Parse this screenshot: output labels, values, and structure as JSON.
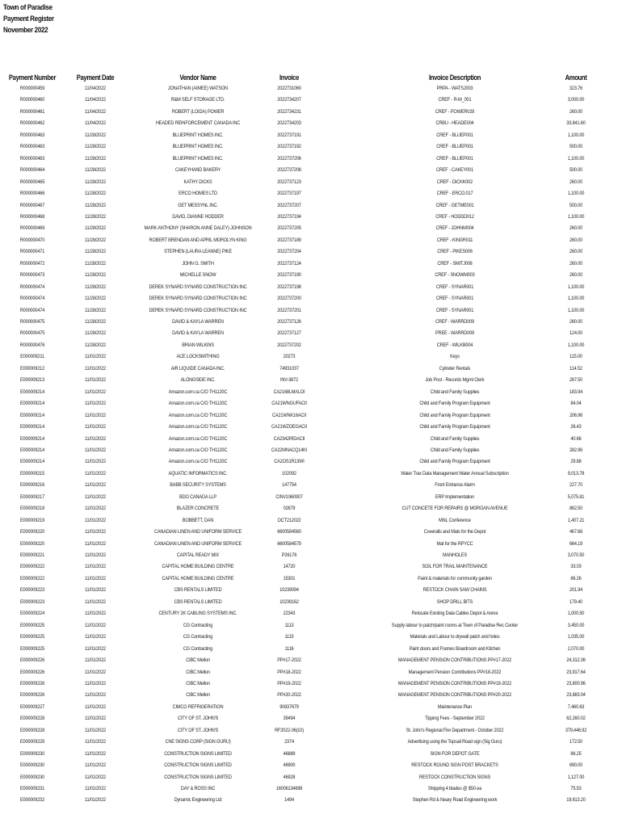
{
  "header": {
    "org": "Town of Paradise",
    "report": "Payment Register",
    "period": "November 2022"
  },
  "columns": [
    "Payment Number",
    "Payment Date",
    "Vendor Name",
    "Invoice",
    "Invoice Description",
    "Amount"
  ],
  "rows": [
    [
      "R000000459",
      "11/04/2022",
      "JONATHAN (AIMEE) WATSON",
      "2022731060",
      "PRPA - WATSJ003",
      "323.76"
    ],
    [
      "R000000460",
      "11/04/2022",
      "R&M SELF STORAGE LTD.",
      "2022734207",
      "CREF - R-M_001",
      "3,000.00"
    ],
    [
      "R000000461",
      "11/04/2022",
      "ROBERT (LOIDA) POWER",
      "2022734231",
      "CREF - POWER029",
      "260.00"
    ],
    [
      "R000000462",
      "11/04/2022",
      "HEADED REINFORCEMENT CANADA INC",
      "2022734203",
      "CRBU - HEADE004",
      "33,841.60"
    ],
    [
      "R000000463",
      "11/28/2022",
      "BLUEPRINT HOMES INC.",
      "2022737191",
      "CREF - BLUEP001",
      "1,100.00"
    ],
    [
      "R000000463",
      "11/28/2022",
      "BLUEPRINT HOMES INC.",
      "2022737192",
      "CREF - BLUEP001",
      "500.00"
    ],
    [
      "R000000463",
      "11/28/2022",
      "BLUEPRINT HOMES INC.",
      "2022737206",
      "CREF - BLUEP001",
      "1,100.00"
    ],
    [
      "R000000464",
      "11/28/2022",
      "CAKEYHAND BAKERY",
      "2022737208",
      "CREF - CAKEY001",
      "500.00"
    ],
    [
      "R000000465",
      "11/28/2022",
      "KATHY DICKS",
      "2022737123",
      "CREF - DICKK002",
      "260.00"
    ],
    [
      "R000000466",
      "11/28/2022",
      "ERCO HOMES LTD",
      "2022737197",
      "CREF - ERCO.017",
      "1,100.00"
    ],
    [
      "R000000467",
      "11/28/2022",
      "GET MESSYNL INC.",
      "2022737207",
      "CREF - GETME001",
      "500.00"
    ],
    [
      "R000000468",
      "11/28/2022",
      "DAVID, DIANNE HODDER",
      "2022737194",
      "CREF - HODDD012",
      "1,100.00"
    ],
    [
      "R000000469",
      "11/28/2022",
      "MARK ANTHONY (SHARON ANNE DALEY) JOHNSON",
      "2022737205",
      "CREF - JOHNM004",
      "260.00"
    ],
    [
      "R000000470",
      "11/28/2022",
      "ROBERT BRENDAN AND APRIL MOROLYN KING",
      "2022737189",
      "CREF - KINGR011",
      "260.00"
    ],
    [
      "R000000471",
      "11/28/2022",
      "STEPHEN (LAURA LEANNE) PIKE",
      "2022737204",
      "CREF - PIKES006",
      "260.00"
    ],
    [
      "R000000472",
      "11/28/2022",
      "JOHN G. SMITH",
      "2022737124",
      "CREF - SMITJ008",
      "260.00"
    ],
    [
      "R000000473",
      "11/28/2022",
      "MICHELLE SNOW",
      "2022737190",
      "CREF - SNOWM003",
      "260.00"
    ],
    [
      "R000000474",
      "11/28/2022",
      "DEREK SYNARD SYNARD CONSTRUCTION INC",
      "2022737198",
      "CREF - SYNAR001",
      "1,100.00"
    ],
    [
      "R000000474",
      "11/28/2022",
      "DEREK SYNARD SYNARD CONSTRUCTION INC",
      "2022737200",
      "CREF - SYNAR001",
      "1,100.00"
    ],
    [
      "R000000474",
      "11/28/2022",
      "DEREK SYNARD SYNARD CONSTRUCTION INC",
      "2022737201",
      "CREF - SYNAR001",
      "1,100.00"
    ],
    [
      "R000000475",
      "11/28/2022",
      "DAVID & KAYLA WARREN",
      "2022737126",
      "CREF - WARRD009",
      "260.00"
    ],
    [
      "R000000475",
      "11/28/2022",
      "DAVID & KAYLA WARREN",
      "2022737127",
      "PREE - WARRD009",
      "124.00"
    ],
    [
      "R000000476",
      "11/28/2022",
      "BRIAN WILKINS",
      "2022737202",
      "CREF - WILKB004",
      "1,100.00"
    ],
    [
      "E000009211",
      "11/01/2022",
      "ACE LOCKSMITHING",
      "20273",
      "Keys",
      "115.00"
    ],
    [
      "E000009212",
      "11/01/2022",
      "AIR LIQUIDE CANADA INC.",
      "74931037",
      "Cylinder Rentals",
      "114.52"
    ],
    [
      "E000009213",
      "11/01/2022",
      "ALONGSIDE INC.",
      "INV-3872",
      "Job Post - Records Mgmt Clerk",
      "287.50"
    ],
    [
      "E000009214",
      "11/01/2022",
      "Amazon.com.ca C/O TH1120C",
      "CA2168LMALOI",
      "Child and Family Supplies",
      "183.94"
    ],
    [
      "E000009214",
      "11/01/2022",
      "Amazon.com.ca C/O TH1120C",
      "CA21WNGUFACII",
      "Child and Family Program Equipment",
      "84.04"
    ],
    [
      "E000009214",
      "11/01/2022",
      "Amazon.com.ca C/O TH1120C",
      "CA21WNK16ACII",
      "Child and Family Program Equipment",
      "206.96"
    ],
    [
      "E000009214",
      "11/01/2022",
      "Amazon.com.ca C/O TH1120C",
      "CA21WZOEGACII",
      "Child and Family Program Equipment",
      "26.43"
    ],
    [
      "E000009214",
      "11/01/2022",
      "Amazon.com.ca C/O TH1120C",
      "CA2342IRDACII",
      "Child and Family Supplies",
      "40.66"
    ],
    [
      "E000009214",
      "11/01/2022",
      "Amazon.com.ca C/O TH1120C",
      "CA22MNACQ14KI",
      "Child and Family Supplies",
      "282.96"
    ],
    [
      "E000009214",
      "11/01/2022",
      "Amazon.com.ca C/O TH1120C",
      "CA2OS1R13WI",
      "Child and Family Program Equipment",
      "29.88"
    ],
    [
      "E000009215",
      "11/01/2022",
      "AQUATIC INFORMATICS INC.",
      "102092",
      "Water Trax Data Management Water Annual Subscription",
      "9,013.78"
    ],
    [
      "E000009216",
      "11/01/2022",
      "BABB SECURITY SYSTEMS",
      "147754",
      "Front Entrance Alarm",
      "227.70"
    ],
    [
      "E000009217",
      "11/01/2022",
      "BDO CANADA LLP",
      "CINV1960907",
      "ERP Implementation",
      "5,075.81"
    ],
    [
      "E000009218",
      "11/01/2022",
      "BLAZER CONCRETE",
      "02679",
      "CUT CONCETE FOR REPAIRS @ MORGAN AVENUE",
      "862.50"
    ],
    [
      "E000009219",
      "11/01/2022",
      "BOBBETT, DAN",
      "OCT212022",
      "MNL Conference",
      "1,407.21"
    ],
    [
      "E000009220",
      "11/01/2022",
      "CANADIAN LINEN AND UNIFORM SERVICE",
      "6600584560",
      "Coveralls and Mats for the Depot",
      "467.68"
    ],
    [
      "E000009220",
      "11/01/2022",
      "CANADIAN LINEN AND UNIFORM SERVICE",
      "6600584579",
      "Mat for the RPYCC",
      "664.19"
    ],
    [
      "E000009221",
      "11/01/2022",
      "CAPITAL READY MIX",
      "P26176",
      "MANHOLES",
      "3,070.50"
    ],
    [
      "E000009222",
      "11/01/2022",
      "CAPITAL HOME BUILDING CENTRE",
      "14720",
      "SOIL FOR TRAIL MAINTENANCE",
      "33.03"
    ],
    [
      "E000009222",
      "11/01/2022",
      "CAPITAL HOME BUILDING CENTRE",
      "15301",
      "Paint & materials for community garden",
      "86.26"
    ],
    [
      "E000009223",
      "11/01/2022",
      "CBS RENTALS LIMITED",
      "10239094",
      "RESTOCK CHAIN SAW CHAINS",
      "201.94"
    ],
    [
      "E000009223",
      "11/01/2022",
      "CBS RENTALS LIMITED",
      "10239162",
      "SHOP DRILL BITS",
      "179.40"
    ],
    [
      "E000009224",
      "11/01/2022",
      "CENTURY 2K CABLING SYSTEMS INC.",
      "22343",
      "Relocate Existing Data Cables Depot & Arena",
      "1,000.50"
    ],
    [
      "E000009225",
      "11/01/2022",
      "CG Contracting",
      "1113",
      "Supply labour to patch/paint rooms at Town of Paradise Rec Center",
      "3,450.00"
    ],
    [
      "E000009225",
      "11/01/2022",
      "CG Contracting",
      "1115",
      "Materials and Labour to drywall patch and holes",
      "1,035.00"
    ],
    [
      "E000009225",
      "11/01/2022",
      "CG Contracting",
      "1116",
      "Paint doors and Frames Boardroom and Kitchen",
      "2,070.00"
    ],
    [
      "E000009226",
      "11/01/2022",
      "CIBC Mellon",
      "PP#17-2022",
      "MANAGEMENT PENSION CONTRIBUTIONS PP#17-2022",
      "24,312.36"
    ],
    [
      "E000009226",
      "11/01/2022",
      "CIBC Mellon",
      "PP#18-2022",
      "Management Pension Contributions PP#18-2022",
      "23,917.64"
    ],
    [
      "E000009226",
      "11/01/2022",
      "CIBC Mellon",
      "PP#19-2022",
      "MANAGEMENT PENSION CONTRIBUTIONS PP#19-2022",
      "23,800.96"
    ],
    [
      "E000009226",
      "11/01/2022",
      "CIBC Mellon",
      "PP#20-2022",
      "MANAGEMENT PENSION CONTRIBUTIONS PP#20-2022",
      "23,883.04"
    ],
    [
      "E000009227",
      "11/01/2022",
      "CIMCO REFRIGERATION",
      "90837679",
      "Maintenance Plan",
      "7,460.63"
    ],
    [
      "E000009228",
      "11/01/2022",
      "CITY OF ST. JOHN'S",
      "39494",
      "Tipping Fees - September 2022",
      "62,260.02"
    ],
    [
      "E000009228",
      "11/01/2022",
      "CITY OF ST. JOHN'S",
      "RF2022-06(10)",
      "St. John's Regional Fire Department - October 2022",
      "379,446.92"
    ],
    [
      "E000009229",
      "11/01/2022",
      "CNE SIGNS CORP (SIGN GURU)",
      "2374",
      "Advertising using the Topsail Road sign (Sig Guru)",
      "172.50"
    ],
    [
      "E000009230",
      "11/01/2022",
      "CONSTRUCTION SIGNS LIMITED",
      "46889",
      "SIGN FOR DEPOT GATE",
      "86.25"
    ],
    [
      "E000009230",
      "11/01/2022",
      "CONSTRUCTION SIGNS LIMITED",
      "46900",
      "RESTOCK ROUND SIGN POST BRACKETS",
      "690.00"
    ],
    [
      "E000009230",
      "11/01/2022",
      "CONSTRUCTION SIGNS LIMITED",
      "46928",
      "RESTOCK CONSTRUCTION SIGNS",
      "1,127.00"
    ],
    [
      "E000009231",
      "11/01/2022",
      "DAY & ROSS INC",
      "16006134698",
      "Shipping 4 blades @ $50 ea",
      "75.53"
    ],
    [
      "E000009232",
      "11/01/2022",
      "Dynamic Engineering Ltd",
      "1494",
      "Stephen Rd & Neary Road Engineering work",
      "19,613.20"
    ]
  ]
}
